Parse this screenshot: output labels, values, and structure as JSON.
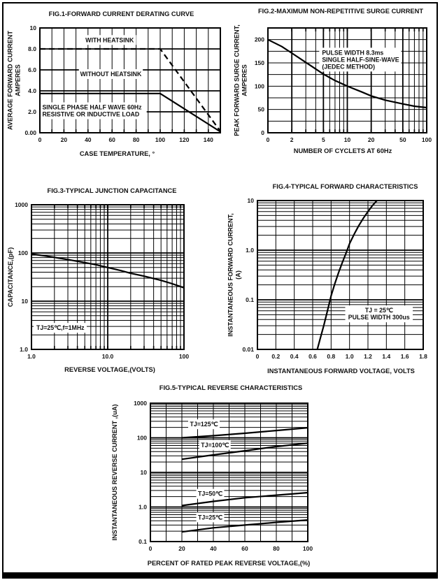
{
  "page": {
    "background": "#ffffff",
    "border_color": "#000000"
  },
  "chart_data": [
    {
      "name": "fig1",
      "type": "line",
      "title": "FIG.1-FORWARD CURRENT DERATING CURVE",
      "xlabel": "CASE TEMPERATURE, °",
      "ylabel": "AVERAGE FORWARD CURRENT\nAMPERES",
      "x": {
        "scale": "linear",
        "min": 0,
        "max": 150,
        "minor": 10,
        "major": [],
        "ticks": [
          [
            0,
            "0"
          ],
          [
            20,
            "20"
          ],
          [
            40,
            "40"
          ],
          [
            60,
            "60"
          ],
          [
            80,
            "80"
          ],
          [
            100,
            "100"
          ],
          [
            120,
            "120"
          ],
          [
            140,
            "140"
          ]
        ]
      },
      "y": {
        "scale": "linear",
        "min": 0,
        "max": 10,
        "minor": null,
        "major": [
          2,
          4,
          6,
          8
        ],
        "ticks": [
          [
            0,
            "0.00"
          ],
          [
            2,
            "2.0"
          ],
          [
            4,
            "4.0"
          ],
          [
            6,
            "6.0"
          ],
          [
            8,
            "8.0"
          ],
          [
            10,
            "10"
          ]
        ]
      },
      "stubs": "bottom",
      "series": [
        {
          "name": "WITH HEATSINK",
          "dash": "8,5",
          "points": [
            [
              0,
              8
            ],
            [
              100,
              8
            ],
            [
              150,
              0.15
            ]
          ]
        },
        {
          "name": "WITHOUT HEATSINK",
          "points": [
            [
              0,
              3.75
            ],
            [
              100,
              3.75
            ],
            [
              150,
              0.1
            ]
          ]
        }
      ],
      "notes": [
        {
          "x": 58,
          "y": 8.85,
          "align": "middle",
          "lines": [
            "WITH HEATSINK"
          ]
        },
        {
          "x": 59,
          "y": 5.6,
          "align": "middle",
          "lines": [
            "WITHOUT HEATSINK"
          ]
        },
        {
          "x": 2,
          "y": 2.1,
          "align": "start",
          "lines": [
            "SINGLE PHASE HALF WAVE  60Hz",
            "RESISTIVE OR INDUCTIVE LOAD"
          ]
        }
      ]
    },
    {
      "name": "fig2",
      "type": "line",
      "title": "FIG.2-MAXIMUM NON-REPETITIVE  SURGE CURRENT",
      "xlabel": "NUMBER OF CYCLETS AT 60Hz",
      "ylabel": "PEAK FORWARD SURGE CURRENT,\nAMPERES",
      "x": {
        "scale": "log",
        "min": 1,
        "max": 100,
        "minor": "log",
        "major": [
          2,
          5,
          10,
          20,
          50
        ],
        "ticks": [
          [
            1,
            "0"
          ],
          [
            2,
            "2"
          ],
          [
            5,
            "5"
          ],
          [
            10,
            "10"
          ],
          [
            20,
            "20"
          ],
          [
            50,
            "50"
          ],
          [
            100,
            "100"
          ]
        ]
      },
      "y": {
        "scale": "linear",
        "min": 0,
        "max": 225,
        "minor": 25,
        "major": [],
        "ticks": [
          [
            0,
            "0"
          ],
          [
            50,
            "50"
          ],
          [
            100,
            "100"
          ],
          [
            150,
            "150"
          ],
          [
            200,
            "200"
          ]
        ]
      },
      "stubs": "both",
      "series": [
        {
          "name": "surge-current",
          "points": [
            [
              1,
              200
            ],
            [
              1.5,
              185
            ],
            [
              2,
              171
            ],
            [
              3,
              151
            ],
            [
              4,
              137
            ],
            [
              5,
              126
            ],
            [
              7,
              112
            ],
            [
              10,
              100
            ],
            [
              15,
              88
            ],
            [
              20,
              79
            ],
            [
              30,
              70
            ],
            [
              50,
              62
            ],
            [
              70,
              57
            ],
            [
              100,
              54
            ]
          ]
        }
      ],
      "notes": [
        {
          "x": 4.8,
          "y": 157,
          "align": "start",
          "lines": [
            "PULSE WIDTH 8.3ms",
            "SINGLE HALF-SINE-WAVE",
            "(JEDEC METHOD)"
          ]
        }
      ]
    },
    {
      "name": "fig3",
      "type": "line",
      "title": "FIG.3-TYPICAL JUNCTION CAPACITANCE",
      "xlabel": "REVERSE VOLTAGE,(VOLTS)",
      "ylabel": "CAPACITANCE,(pF)",
      "x": {
        "scale": "log",
        "min": 1,
        "max": 100,
        "minor": "log",
        "major": [
          10
        ],
        "ticks": [
          [
            1,
            "1.0"
          ],
          [
            10,
            "10.0"
          ],
          [
            100,
            "100"
          ]
        ]
      },
      "y": {
        "scale": "log",
        "min": 1,
        "max": 1000,
        "minor": "log",
        "major": [
          10,
          100
        ],
        "ticks": [
          [
            1,
            "1.0"
          ],
          [
            10,
            "10"
          ],
          [
            100,
            "100"
          ],
          [
            1000,
            "1000"
          ]
        ]
      },
      "stubs": "both",
      "series": [
        {
          "name": "junction-capacitance",
          "points": [
            [
              1,
              95
            ],
            [
              1.5,
              87
            ],
            [
              2,
              81
            ],
            [
              3,
              73
            ],
            [
              5,
              63
            ],
            [
              7,
              57
            ],
            [
              10,
              50
            ],
            [
              15,
              43
            ],
            [
              20,
              38
            ],
            [
              30,
              33
            ],
            [
              50,
              27
            ],
            [
              70,
              23
            ],
            [
              100,
              19
            ]
          ]
        }
      ],
      "notes": [
        {
          "x": 1.16,
          "y": 2.8,
          "align": "start",
          "lines": [
            "TJ=25℃,f=1MHz"
          ]
        }
      ]
    },
    {
      "name": "fig4",
      "type": "line",
      "title": "FIG.4-TYPICAL FORWARD CHARACTERISTICS",
      "xlabel": "INSTANTANEOUS FORWARD VOLTAGE, VOLTS",
      "ylabel": "INSTANTANEOUS FORWARD CURRENT,\n(A)",
      "x": {
        "scale": "linear",
        "min": 0,
        "max": 1.8,
        "minor": 0.2,
        "major": [],
        "ticks": [
          [
            0,
            "0"
          ],
          [
            0.2,
            "0.2"
          ],
          [
            0.4,
            "0.4"
          ],
          [
            0.6,
            "0.6"
          ],
          [
            0.8,
            "0.8"
          ],
          [
            1,
            "1.0"
          ],
          [
            1.2,
            "1.2"
          ],
          [
            1.4,
            "1.4"
          ],
          [
            1.6,
            "1.6"
          ],
          [
            1.8,
            "1.8"
          ]
        ]
      },
      "y": {
        "scale": "log",
        "min": 0.01,
        "max": 10,
        "minor": "log",
        "major": [
          0.1,
          1
        ],
        "ticks": [
          [
            0.01,
            "0.01"
          ],
          [
            0.1,
            "0.1"
          ],
          [
            1,
            "1.0"
          ],
          [
            10,
            "10"
          ]
        ]
      },
      "stubs": "none",
      "series": [
        {
          "name": "forward-vi",
          "points": [
            [
              0.65,
              0.01
            ],
            [
              0.68,
              0.016
            ],
            [
              0.72,
              0.03
            ],
            [
              0.76,
              0.06
            ],
            [
              0.8,
              0.12
            ],
            [
              0.84,
              0.21
            ],
            [
              0.88,
              0.35
            ],
            [
              0.92,
              0.55
            ],
            [
              0.96,
              0.85
            ],
            [
              1,
              1.35
            ],
            [
              1.05,
              2.1
            ],
            [
              1.1,
              3.1
            ],
            [
              1.15,
              4.4
            ],
            [
              1.2,
              6
            ],
            [
              1.25,
              8
            ],
            [
              1.31,
              10.6
            ]
          ]
        }
      ],
      "notes": [
        {
          "x": 1.32,
          "y": 0.052,
          "align": "middle",
          "lines": [
            "TJ = 25℃",
            "PULSE WIDTH 300us"
          ]
        }
      ]
    },
    {
      "name": "fig5",
      "type": "line",
      "title": "FIG.5-TYPICAL REVERSE CHARACTERISTICS",
      "xlabel": "PERCENT OF RATED PEAK REVERSE VOLTAGE,(%)",
      "ylabel": "INSTANTANEOUS  REVERSE  CURRENT ,(uA)",
      "x": {
        "scale": "linear",
        "min": 0,
        "max": 100,
        "minor": 10,
        "major": [],
        "ticks": [
          [
            0,
            "0"
          ],
          [
            20,
            "20"
          ],
          [
            40,
            "40"
          ],
          [
            60,
            "60"
          ],
          [
            80,
            "80"
          ],
          [
            100,
            "100"
          ]
        ]
      },
      "y": {
        "scale": "log",
        "min": 0.1,
        "max": 1000,
        "minor": "log",
        "major": [
          1,
          10,
          100
        ],
        "ticks": [
          [
            0.1,
            "0.1"
          ],
          [
            1,
            "1.0"
          ],
          [
            10,
            "10"
          ],
          [
            100,
            "100"
          ],
          [
            1000,
            "1000"
          ]
        ]
      },
      "stubs": "none",
      "series": [
        {
          "name": "TJ=125℃",
          "points": [
            [
              20,
              100
            ],
            [
              40,
              115
            ],
            [
              60,
              135
            ],
            [
              80,
              162
            ],
            [
              100,
              195
            ]
          ]
        },
        {
          "name": "TJ=100℃",
          "points": [
            [
              20,
              24
            ],
            [
              40,
              32
            ],
            [
              60,
              42
            ],
            [
              80,
              56
            ],
            [
              100,
              70
            ]
          ]
        },
        {
          "name": "TJ=50℃",
          "points": [
            [
              20,
              1.1
            ],
            [
              40,
              1.45
            ],
            [
              60,
              1.85
            ],
            [
              80,
              2.2
            ],
            [
              100,
              2.6
            ]
          ]
        },
        {
          "name": "TJ=25℃",
          "points": [
            [
              20,
              0.19
            ],
            [
              40,
              0.25
            ],
            [
              60,
              0.3
            ],
            [
              80,
              0.36
            ],
            [
              100,
              0.42
            ]
          ]
        }
      ],
      "notes": [
        {
          "x": 34,
          "y": 246,
          "align": "middle",
          "lines": [
            "TJ=125℃"
          ]
        },
        {
          "x": 41,
          "y": 62,
          "align": "middle",
          "lines": [
            "TJ=100℃"
          ]
        },
        {
          "x": 38,
          "y": 2.4,
          "align": "middle",
          "lines": [
            "TJ=50℃"
          ]
        },
        {
          "x": 38,
          "y": 0.5,
          "align": "middle",
          "lines": [
            "TJ=25℃"
          ]
        }
      ]
    }
  ]
}
